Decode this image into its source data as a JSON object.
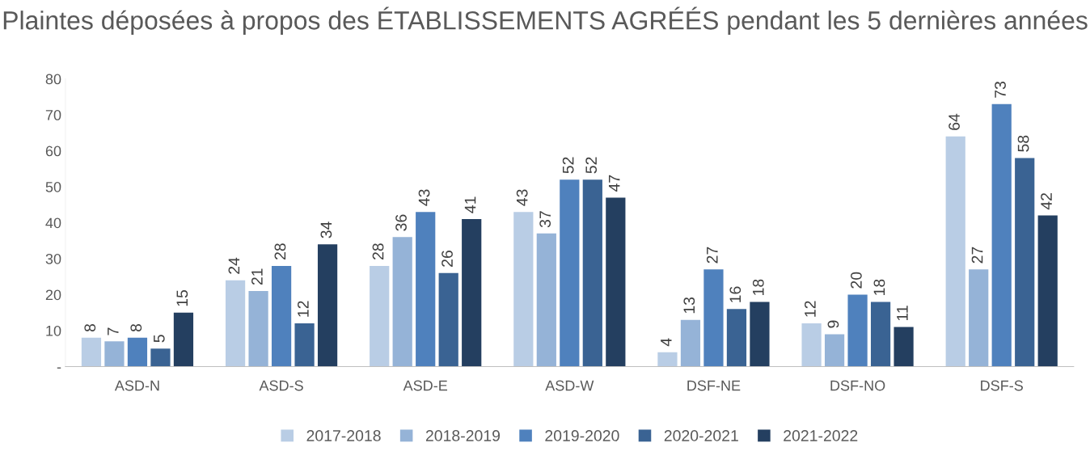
{
  "chart_data": {
    "type": "bar",
    "title": "Plaintes déposées à propos des ÉTABLISSEMENTS AGRÉÉS pendant les 5 dernières années",
    "categories": [
      "ASD-N",
      "ASD-S",
      "ASD-E",
      "ASD-W",
      "DSF-NE",
      "DSF-NO",
      "DSF-S"
    ],
    "series": [
      {
        "name": "2017-2018",
        "color": "#b9cde5",
        "values": [
          8,
          24,
          28,
          43,
          4,
          12,
          64
        ]
      },
      {
        "name": "2018-2019",
        "color": "#95b3d7",
        "values": [
          7,
          21,
          36,
          37,
          13,
          9,
          27
        ]
      },
      {
        "name": "2019-2020",
        "color": "#4f81bd",
        "values": [
          8,
          28,
          43,
          52,
          27,
          20,
          73
        ]
      },
      {
        "name": "2020-2021",
        "color": "#3a6393",
        "values": [
          5,
          12,
          26,
          52,
          16,
          18,
          58
        ]
      },
      {
        "name": "2021-2022",
        "color": "#243f60",
        "values": [
          15,
          34,
          41,
          47,
          18,
          11,
          42
        ]
      }
    ],
    "ylim": [
      0,
      80
    ],
    "yticks": [
      {
        "value": 0,
        "label": "-"
      },
      10,
      20,
      30,
      40,
      50,
      60,
      70,
      80
    ],
    "data_labels": true,
    "grid": false,
    "legend": "bottom"
  }
}
